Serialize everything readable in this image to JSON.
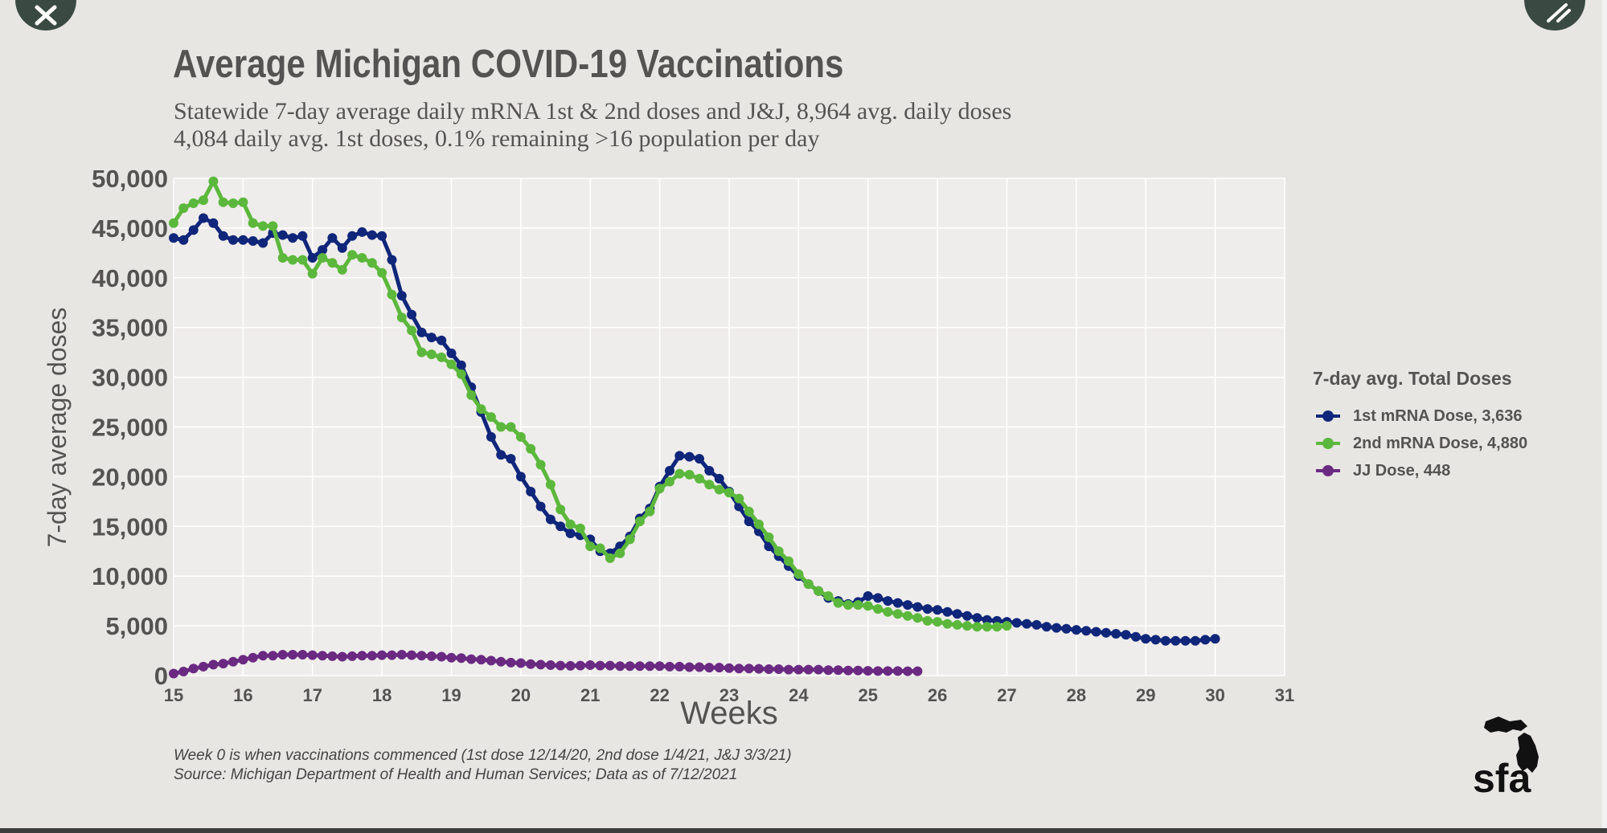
{
  "title": "Average Michigan COVID-19 Vaccinations",
  "subtitle_line1": "Statewide 7-day average daily mRNA 1st & 2nd doses and J&J, 8,964 avg. daily doses",
  "subtitle_line2": "4,084 daily avg. 1st doses, 0.1% remaining >16 population per day",
  "footnote_line1": "Week 0 is when vaccinations commenced (1st dose 12/14/20, 2nd dose 1/4/21, J&J 3/3/21)",
  "footnote_line2": "Source: Michigan Department of Health and Human Services; Data as of 7/12/2021",
  "logo_text": "sfa",
  "icons": {
    "close": "close-icon",
    "expand": "expand-icon"
  },
  "colors": {
    "background": "#e8e6e3",
    "plot_background": "#efedeb",
    "first_dose": "#10267a",
    "second_dose": "#5cb83c",
    "jj_dose": "#6a2a82",
    "text": "#555351"
  },
  "chart_data": {
    "type": "line",
    "title": "Average Michigan COVID-19 Vaccinations",
    "xlabel": "Weeks",
    "ylabel": "7-day average doses",
    "xlim": [
      15,
      31
    ],
    "ylim": [
      0,
      50000
    ],
    "x_ticks": [
      "15",
      "16",
      "17",
      "18",
      "19",
      "20",
      "21",
      "22",
      "23",
      "24",
      "25",
      "26",
      "27",
      "28",
      "29",
      "30",
      "31"
    ],
    "y_ticks": [
      "0",
      "5,000",
      "10,000",
      "15,000",
      "20,000",
      "25,000",
      "30,000",
      "35,000",
      "40,000",
      "45,000",
      "50,000"
    ],
    "grid": true,
    "legend_title": "7-day avg. Total Doses",
    "legend_position": "right",
    "series": [
      {
        "name": "1st mRNA Dose, 3,636",
        "color": "#10267a",
        "x_start": 15,
        "x_step": 0.142857,
        "values": [
          44000,
          43800,
          44800,
          46000,
          45500,
          44200,
          43800,
          43800,
          43700,
          43500,
          44500,
          44300,
          44000,
          44200,
          42000,
          42800,
          44000,
          43000,
          44200,
          44600,
          44300,
          44200,
          41800,
          38200,
          36300,
          34500,
          34000,
          33700,
          32400,
          31200,
          29000,
          26500,
          24000,
          22200,
          21800,
          20000,
          18500,
          17000,
          15700,
          15000,
          14300,
          14100,
          13700,
          12500,
          12300,
          13000,
          14000,
          15800,
          16800,
          19000,
          20600,
          22100,
          22000,
          21800,
          20600,
          19800,
          18500,
          17000,
          15500,
          14500,
          13000,
          12000,
          11000,
          10000,
          9200,
          8500,
          7800,
          7500,
          7200,
          7400,
          8000,
          7800,
          7500,
          7300,
          7100,
          6900,
          6700,
          6600,
          6400,
          6200,
          6000,
          5800,
          5600,
          5500,
          5400,
          5300,
          5200,
          5100,
          4900,
          4800,
          4700,
          4600,
          4500,
          4400,
          4300,
          4200,
          4100,
          3900,
          3700,
          3600,
          3500,
          3500,
          3500,
          3500,
          3600,
          3700
        ]
      },
      {
        "name": "2nd mRNA Dose, 4,880",
        "color": "#5cb83c",
        "x_start": 15,
        "x_step": 0.142857,
        "values": [
          45500,
          47000,
          47500,
          47800,
          49700,
          47600,
          47500,
          47600,
          45500,
          45200,
          45200,
          42000,
          41800,
          41800,
          40400,
          42000,
          41500,
          40800,
          42300,
          42000,
          41500,
          40500,
          38300,
          36000,
          34700,
          32500,
          32300,
          32000,
          31300,
          30300,
          28200,
          26800,
          26000,
          25000,
          25000,
          24000,
          22800,
          21200,
          19200,
          16700,
          15200,
          14800,
          13000,
          12800,
          11800,
          12300,
          13700,
          15500,
          16500,
          18800,
          19500,
          20300,
          20200,
          19800,
          19200,
          18700,
          18400,
          17800,
          16500,
          15200,
          13900,
          12500,
          11500,
          10200,
          9200,
          8500,
          8000,
          7300,
          7100,
          7100,
          7000,
          6700,
          6400,
          6200,
          6000,
          5800,
          5500,
          5400,
          5200,
          5100,
          5000,
          4900,
          4900,
          4900,
          5000
        ]
      },
      {
        "name": "JJ Dose, 448",
        "color": "#6a2a82",
        "x_start": 15,
        "x_step": 0.142857,
        "values": [
          200,
          400,
          700,
          900,
          1100,
          1200,
          1400,
          1600,
          1800,
          2000,
          2000,
          2100,
          2100,
          2100,
          2050,
          2000,
          1950,
          1900,
          1950,
          2000,
          2000,
          2050,
          2050,
          2100,
          2050,
          2000,
          1950,
          1900,
          1800,
          1750,
          1650,
          1600,
          1500,
          1400,
          1300,
          1250,
          1150,
          1100,
          1050,
          1000,
          980,
          1000,
          1050,
          1000,
          1000,
          950,
          950,
          950,
          950,
          950,
          900,
          900,
          850,
          850,
          800,
          800,
          750,
          700,
          700,
          680,
          650,
          650,
          600,
          600,
          600,
          600,
          550,
          550,
          500,
          500,
          480,
          450,
          450,
          450,
          440,
          440
        ]
      }
    ]
  }
}
